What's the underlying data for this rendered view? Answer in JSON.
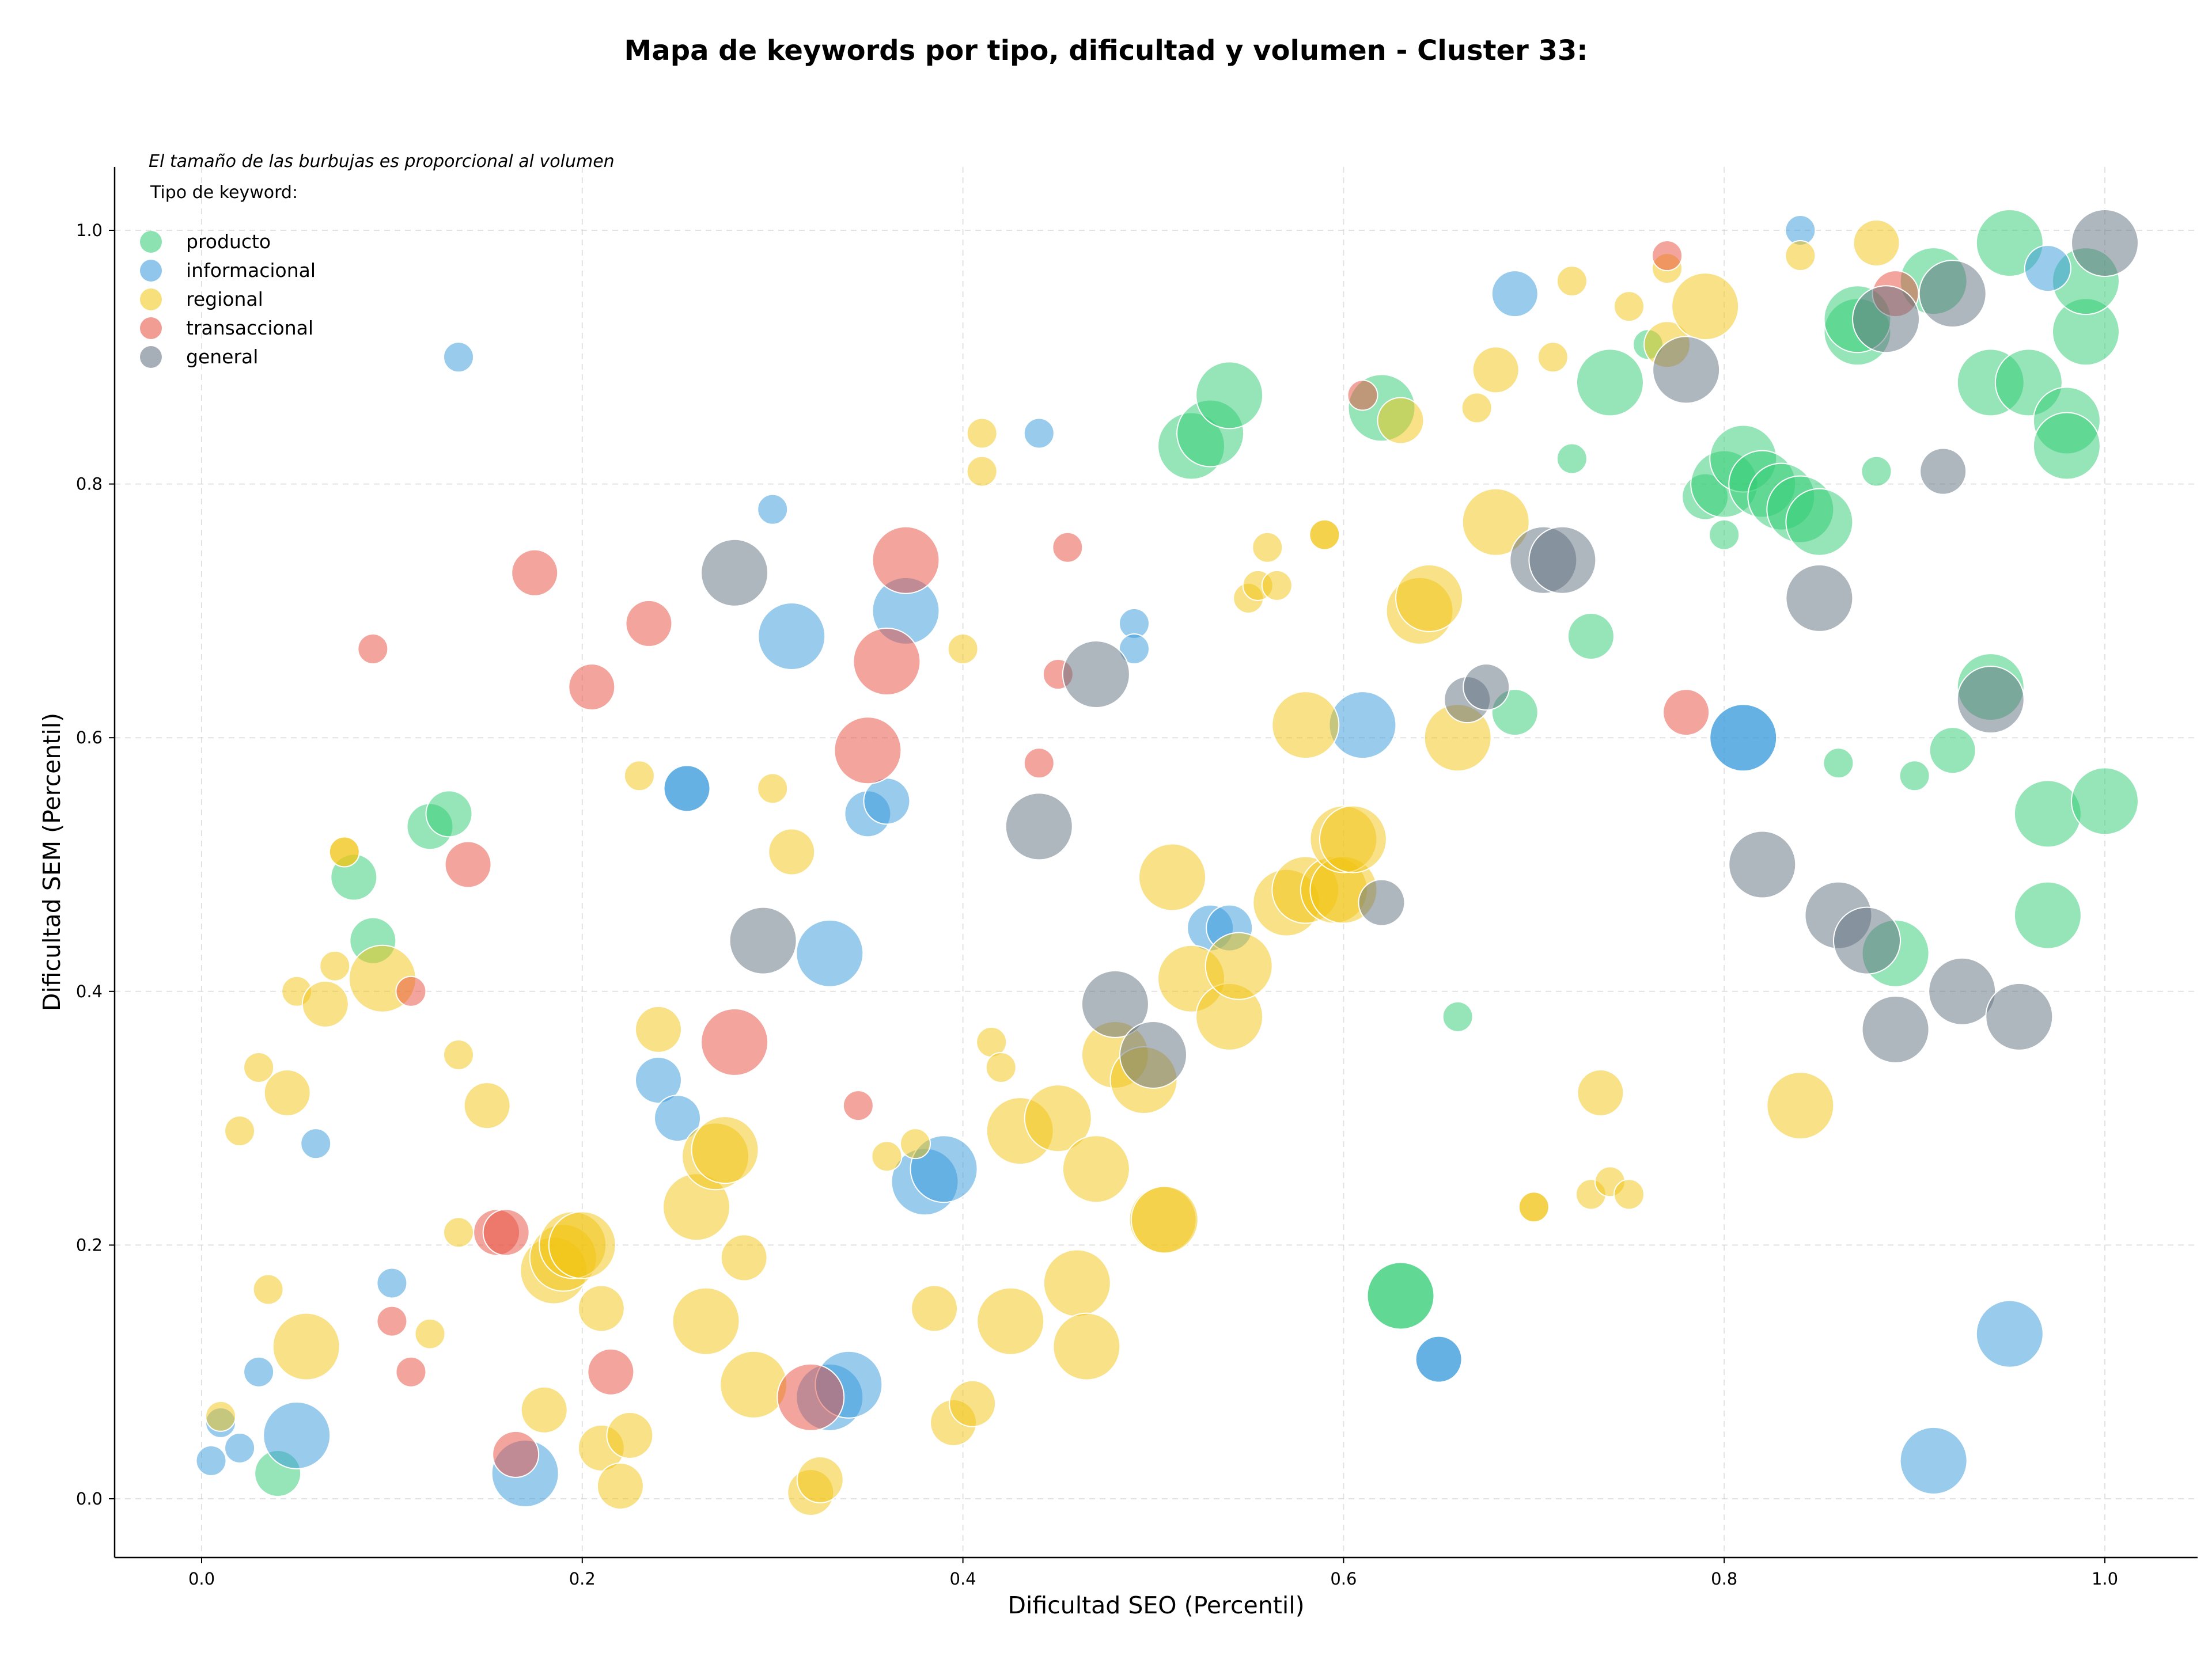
{
  "chart_data": {
    "type": "scatter",
    "title": "Mapa de keywords por tipo, dificultad y volumen - Cluster 33:",
    "xlabel": "Dificultad SEO (Percentil)",
    "ylabel": "Dificultad SEM (Percentil)",
    "xlim": [
      -0.045,
      1.05
    ],
    "ylim": [
      -0.045,
      1.05
    ],
    "xticks": [
      "0.0",
      "0.2",
      "0.4",
      "0.6",
      "0.8",
      "1.0"
    ],
    "yticks": [
      "0.0",
      "0.2",
      "0.4",
      "0.6",
      "0.8",
      "1.0"
    ],
    "grid": true,
    "note": "El tamaño de las burbujas es proporcional al volumen",
    "legend": {
      "title": "Tipo de keyword:",
      "placement": "top-left"
    },
    "series": [
      {
        "name": "producto",
        "color": "#2ecc71",
        "points": [
          [
            0.04,
            0.02,
            2
          ],
          [
            0.08,
            0.49,
            2
          ],
          [
            0.09,
            0.44,
            2
          ],
          [
            0.12,
            0.53,
            2
          ],
          [
            0.13,
            0.54,
            2
          ],
          [
            0.52,
            0.83,
            3
          ],
          [
            0.53,
            0.84,
            3
          ],
          [
            0.54,
            0.87,
            3
          ],
          [
            0.62,
            0.86,
            3
          ],
          [
            0.63,
            0.16,
            3
          ],
          [
            0.63,
            0.16,
            3
          ],
          [
            0.66,
            0.38,
            1
          ],
          [
            0.69,
            0.62,
            2
          ],
          [
            0.72,
            0.82,
            1
          ],
          [
            0.73,
            0.68,
            2
          ],
          [
            0.74,
            0.88,
            3
          ],
          [
            0.76,
            0.91,
            1
          ],
          [
            0.79,
            0.79,
            2
          ],
          [
            0.8,
            0.8,
            3
          ],
          [
            0.8,
            0.76,
            1
          ],
          [
            0.81,
            0.82,
            3
          ],
          [
            0.82,
            0.8,
            3
          ],
          [
            0.83,
            0.79,
            3
          ],
          [
            0.84,
            0.78,
            3
          ],
          [
            0.85,
            0.77,
            3
          ],
          [
            0.86,
            0.58,
            1
          ],
          [
            0.87,
            0.92,
            3
          ],
          [
            0.87,
            0.93,
            3
          ],
          [
            0.88,
            0.81,
            1
          ],
          [
            0.89,
            0.43,
            3
          ],
          [
            0.9,
            0.57,
            1
          ],
          [
            0.92,
            0.59,
            2
          ],
          [
            0.91,
            0.96,
            3
          ],
          [
            0.94,
            0.64,
            3
          ],
          [
            0.94,
            0.88,
            3
          ],
          [
            0.95,
            0.99,
            3
          ],
          [
            0.96,
            0.88,
            3
          ],
          [
            0.97,
            0.46,
            3
          ],
          [
            0.97,
            0.54,
            3
          ],
          [
            0.98,
            0.85,
            3
          ],
          [
            0.98,
            0.83,
            3
          ],
          [
            0.99,
            0.92,
            3
          ],
          [
            0.99,
            0.96,
            3
          ],
          [
            1.0,
            0.55,
            3
          ]
        ]
      },
      {
        "name": "informacional",
        "color": "#3498db",
        "points": [
          [
            0.005,
            0.03,
            1
          ],
          [
            0.01,
            0.06,
            1
          ],
          [
            0.02,
            0.04,
            1
          ],
          [
            0.03,
            0.1,
            1
          ],
          [
            0.05,
            0.05,
            3
          ],
          [
            0.06,
            0.28,
            1
          ],
          [
            0.1,
            0.17,
            1
          ],
          [
            0.135,
            0.9,
            1
          ],
          [
            0.17,
            0.02,
            3
          ],
          [
            0.24,
            0.33,
            2
          ],
          [
            0.25,
            0.3,
            2
          ],
          [
            0.255,
            0.56,
            2
          ],
          [
            0.255,
            0.56,
            2
          ],
          [
            0.3,
            0.78,
            1
          ],
          [
            0.31,
            0.68,
            3
          ],
          [
            0.33,
            0.43,
            3
          ],
          [
            0.33,
            0.08,
            3
          ],
          [
            0.34,
            0.09,
            3
          ],
          [
            0.35,
            0.54,
            2
          ],
          [
            0.36,
            0.55,
            2
          ],
          [
            0.37,
            0.7,
            3
          ],
          [
            0.38,
            0.25,
            3
          ],
          [
            0.39,
            0.26,
            3
          ],
          [
            0.44,
            0.84,
            1
          ],
          [
            0.49,
            0.69,
            1
          ],
          [
            0.49,
            0.67,
            1
          ],
          [
            0.53,
            0.45,
            2
          ],
          [
            0.54,
            0.45,
            2
          ],
          [
            0.61,
            0.61,
            3
          ],
          [
            0.65,
            0.11,
            2
          ],
          [
            0.65,
            0.11,
            2
          ],
          [
            0.69,
            0.95,
            2
          ],
          [
            0.81,
            0.6,
            3
          ],
          [
            0.81,
            0.6,
            3
          ],
          [
            0.84,
            1.0,
            1
          ],
          [
            0.91,
            0.03,
            3
          ],
          [
            0.95,
            0.13,
            3
          ],
          [
            0.97,
            0.97,
            2
          ]
        ]
      },
      {
        "name": "regional",
        "color": "#f1c40f",
        "points": [
          [
            0.01,
            0.065,
            1
          ],
          [
            0.02,
            0.29,
            1
          ],
          [
            0.03,
            0.34,
            1
          ],
          [
            0.035,
            0.165,
            1
          ],
          [
            0.045,
            0.32,
            2
          ],
          [
            0.05,
            0.4,
            1
          ],
          [
            0.055,
            0.12,
            3
          ],
          [
            0.065,
            0.39,
            2
          ],
          [
            0.07,
            0.42,
            1
          ],
          [
            0.075,
            0.51,
            1
          ],
          [
            0.075,
            0.51,
            1
          ],
          [
            0.095,
            0.41,
            3
          ],
          [
            0.12,
            0.13,
            1
          ],
          [
            0.135,
            0.35,
            1
          ],
          [
            0.135,
            0.21,
            1
          ],
          [
            0.15,
            0.31,
            2
          ],
          [
            0.18,
            0.07,
            2
          ],
          [
            0.185,
            0.18,
            3
          ],
          [
            0.19,
            0.19,
            3
          ],
          [
            0.195,
            0.2,
            3
          ],
          [
            0.2,
            0.2,
            3
          ],
          [
            0.21,
            0.15,
            2
          ],
          [
            0.21,
            0.04,
            2
          ],
          [
            0.22,
            0.01,
            2
          ],
          [
            0.225,
            0.05,
            2
          ],
          [
            0.23,
            0.57,
            1
          ],
          [
            0.24,
            0.37,
            2
          ],
          [
            0.26,
            0.23,
            3
          ],
          [
            0.265,
            0.14,
            3
          ],
          [
            0.27,
            0.27,
            3
          ],
          [
            0.275,
            0.275,
            3
          ],
          [
            0.285,
            0.19,
            2
          ],
          [
            0.29,
            0.09,
            3
          ],
          [
            0.3,
            0.56,
            1
          ],
          [
            0.31,
            0.51,
            2
          ],
          [
            0.32,
            0.005,
            2
          ],
          [
            0.325,
            0.015,
            2
          ],
          [
            0.36,
            0.27,
            1
          ],
          [
            0.375,
            0.28,
            1
          ],
          [
            0.385,
            0.15,
            2
          ],
          [
            0.395,
            0.06,
            2
          ],
          [
            0.4,
            0.67,
            1
          ],
          [
            0.405,
            0.075,
            2
          ],
          [
            0.41,
            0.84,
            1
          ],
          [
            0.41,
            0.81,
            1
          ],
          [
            0.415,
            0.36,
            1
          ],
          [
            0.42,
            0.34,
            1
          ],
          [
            0.425,
            0.14,
            3
          ],
          [
            0.43,
            0.29,
            3
          ],
          [
            0.45,
            0.3,
            3
          ],
          [
            0.46,
            0.17,
            3
          ],
          [
            0.465,
            0.12,
            3
          ],
          [
            0.47,
            0.26,
            3
          ],
          [
            0.48,
            0.35,
            3
          ],
          [
            0.495,
            0.33,
            3
          ],
          [
            0.505,
            0.22,
            3
          ],
          [
            0.506,
            0.22,
            3
          ],
          [
            0.51,
            0.49,
            3
          ],
          [
            0.52,
            0.41,
            3
          ],
          [
            0.54,
            0.38,
            3
          ],
          [
            0.545,
            0.42,
            3
          ],
          [
            0.55,
            0.71,
            1
          ],
          [
            0.555,
            0.72,
            1
          ],
          [
            0.56,
            0.75,
            1
          ],
          [
            0.565,
            0.72,
            1
          ],
          [
            0.57,
            0.47,
            3
          ],
          [
            0.58,
            0.48,
            3
          ],
          [
            0.58,
            0.61,
            3
          ],
          [
            0.59,
            0.76,
            1
          ],
          [
            0.59,
            0.76,
            1
          ],
          [
            0.595,
            0.48,
            3
          ],
          [
            0.6,
            0.48,
            3
          ],
          [
            0.6,
            0.52,
            3
          ],
          [
            0.605,
            0.52,
            3
          ],
          [
            0.63,
            0.85,
            2
          ],
          [
            0.64,
            0.7,
            3
          ],
          [
            0.645,
            0.71,
            3
          ],
          [
            0.66,
            0.6,
            3
          ],
          [
            0.67,
            0.86,
            1
          ],
          [
            0.68,
            0.77,
            3
          ],
          [
            0.68,
            0.89,
            2
          ],
          [
            0.7,
            0.23,
            1
          ],
          [
            0.7,
            0.23,
            1
          ],
          [
            0.71,
            0.9,
            1
          ],
          [
            0.72,
            0.96,
            1
          ],
          [
            0.73,
            0.24,
            1
          ],
          [
            0.735,
            0.32,
            2
          ],
          [
            0.74,
            0.25,
            1
          ],
          [
            0.75,
            0.24,
            1
          ],
          [
            0.75,
            0.94,
            1
          ],
          [
            0.77,
            0.91,
            2
          ],
          [
            0.77,
            0.97,
            1
          ],
          [
            0.79,
            0.94,
            3
          ],
          [
            0.84,
            0.31,
            3
          ],
          [
            0.84,
            0.98,
            1
          ],
          [
            0.88,
            0.99,
            2
          ]
        ]
      },
      {
        "name": "transaccional",
        "color": "#e74c3c",
        "points": [
          [
            0.09,
            0.67,
            1
          ],
          [
            0.1,
            0.14,
            1
          ],
          [
            0.11,
            0.1,
            1
          ],
          [
            0.11,
            0.4,
            1
          ],
          [
            0.14,
            0.5,
            2
          ],
          [
            0.155,
            0.21,
            2
          ],
          [
            0.16,
            0.21,
            2
          ],
          [
            0.165,
            0.035,
            2
          ],
          [
            0.175,
            0.73,
            2
          ],
          [
            0.205,
            0.64,
            2
          ],
          [
            0.215,
            0.1,
            2
          ],
          [
            0.235,
            0.69,
            2
          ],
          [
            0.28,
            0.36,
            3
          ],
          [
            0.32,
            0.08,
            3
          ],
          [
            0.345,
            0.31,
            1
          ],
          [
            0.35,
            0.59,
            3
          ],
          [
            0.36,
            0.66,
            3
          ],
          [
            0.37,
            0.74,
            3
          ],
          [
            0.44,
            0.58,
            1
          ],
          [
            0.45,
            0.65,
            1
          ],
          [
            0.455,
            0.75,
            1
          ],
          [
            0.61,
            0.87,
            1
          ],
          [
            0.77,
            0.98,
            1
          ],
          [
            0.78,
            0.62,
            2
          ],
          [
            0.89,
            0.95,
            2
          ]
        ]
      },
      {
        "name": "general",
        "color": "#5d6d7e",
        "points": [
          [
            0.28,
            0.73,
            3
          ],
          [
            0.295,
            0.44,
            3
          ],
          [
            0.44,
            0.53,
            3
          ],
          [
            0.47,
            0.65,
            3
          ],
          [
            0.48,
            0.39,
            3
          ],
          [
            0.5,
            0.35,
            3
          ],
          [
            0.62,
            0.47,
            2
          ],
          [
            0.665,
            0.63,
            2
          ],
          [
            0.675,
            0.64,
            2
          ],
          [
            0.705,
            0.74,
            3
          ],
          [
            0.715,
            0.74,
            3
          ],
          [
            0.78,
            0.89,
            3
          ],
          [
            0.82,
            0.5,
            3
          ],
          [
            0.85,
            0.71,
            3
          ],
          [
            0.86,
            0.46,
            3
          ],
          [
            0.875,
            0.44,
            3
          ],
          [
            0.885,
            0.93,
            3
          ],
          [
            0.89,
            0.37,
            3
          ],
          [
            0.915,
            0.81,
            2
          ],
          [
            0.92,
            0.95,
            3
          ],
          [
            0.925,
            0.4,
            3
          ],
          [
            0.94,
            0.63,
            3
          ],
          [
            0.955,
            0.38,
            3
          ],
          [
            1.0,
            0.99,
            3
          ]
        ]
      }
    ]
  }
}
